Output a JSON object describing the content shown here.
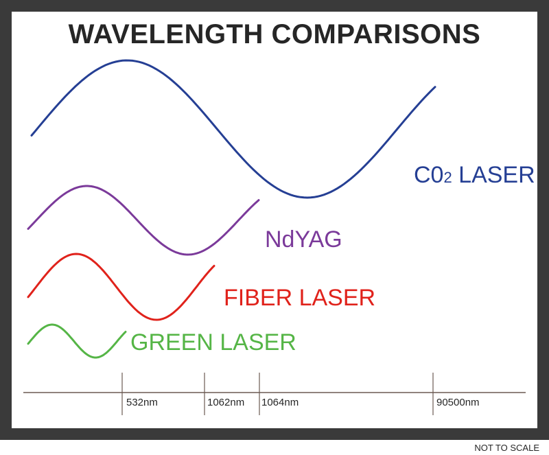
{
  "title": "WAVELENGTH COMPARISONS",
  "colors": {
    "co2": "#253f94",
    "ndyag": "#7b3a9a",
    "fiber": "#e0221b",
    "green": "#55b546",
    "axis": "#6b5a52",
    "frame": "#3a3a3a"
  },
  "waves": [
    {
      "id": "co2",
      "label_main": "C0",
      "label_sub": "2",
      "label_rest": " LASER",
      "color": "#253f94"
    },
    {
      "id": "ndyag",
      "label_main": "NdYAG",
      "label_sub": "",
      "label_rest": "",
      "color": "#7b3a9a"
    },
    {
      "id": "fiber",
      "label_main": "FIBER LASER",
      "label_sub": "",
      "label_rest": "",
      "color": "#e0221b"
    },
    {
      "id": "green",
      "label_main": "GREEN LASER",
      "label_sub": "",
      "label_rest": "",
      "color": "#55b546"
    }
  ],
  "axis_ticks": [
    "532nm",
    "1062nm",
    "1064nm",
    "90500nm"
  ],
  "note": "NOT TO SCALE"
}
